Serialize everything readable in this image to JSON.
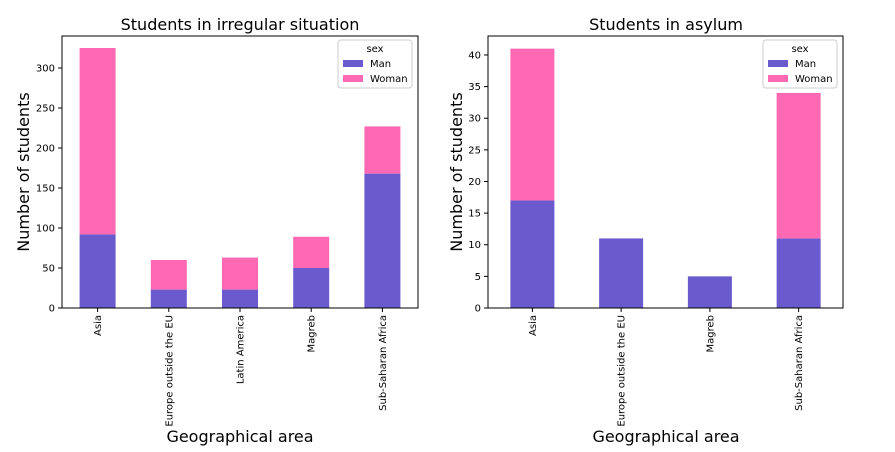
{
  "chart_data": [
    {
      "type": "bar",
      "stacked": true,
      "title": "Students in irregular situation",
      "xlabel": "Geographical area",
      "ylabel": "Number of students",
      "categories": [
        "Asia",
        "Europe outside the EU",
        "Latin America",
        "Magreb",
        "Sub-Saharan Africa"
      ],
      "series": [
        {
          "name": "Man",
          "color": "#6a5acd",
          "values": [
            92,
            23,
            23,
            50,
            168
          ]
        },
        {
          "name": "Woman",
          "color": "#ff69b4",
          "values": [
            233,
            37,
            40,
            39,
            59
          ]
        }
      ],
      "ylim": [
        0,
        340
      ],
      "yticks": [
        0,
        50,
        100,
        150,
        200,
        250,
        300
      ],
      "legend": {
        "title": "sex",
        "placement": "top-right"
      },
      "grid": false
    },
    {
      "type": "bar",
      "stacked": true,
      "title": "Students in asylum",
      "xlabel": "Geographical area",
      "ylabel": "Number of students",
      "categories": [
        "Asia",
        "Europe outside the EU",
        "Magreb",
        "Sub-Saharan Africa"
      ],
      "series": [
        {
          "name": "Man",
          "color": "#6a5acd",
          "values": [
            17,
            11,
            5,
            11
          ]
        },
        {
          "name": "Woman",
          "color": "#ff69b4",
          "values": [
            24,
            0,
            0,
            23
          ]
        }
      ],
      "ylim": [
        0,
        43
      ],
      "yticks": [
        0,
        5,
        10,
        15,
        20,
        25,
        30,
        35,
        40
      ],
      "legend": {
        "title": "sex",
        "placement": "top-right"
      },
      "grid": false
    }
  ]
}
